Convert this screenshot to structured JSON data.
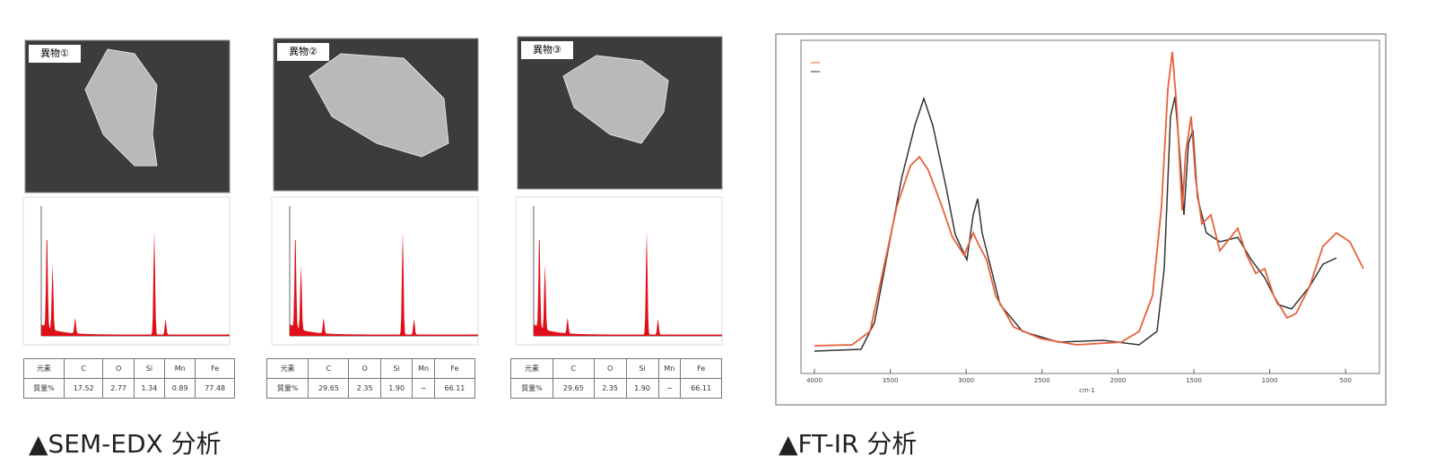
{
  "panels": [
    {
      "label": "異物①",
      "table": {
        "rows": [
          [
            "元素",
            "C",
            "O",
            "Si",
            "Mn",
            "Fe"
          ],
          [
            "質量%",
            "17.52",
            "2.77",
            "1.34",
            "0.89",
            "77.48"
          ]
        ]
      }
    },
    {
      "label": "異物②",
      "table": {
        "rows": [
          [
            "元素",
            "C",
            "O",
            "Si",
            "Mn",
            "Fe"
          ],
          [
            "質量%",
            "29.65",
            "2.35",
            "1.90",
            "−",
            "66.11"
          ]
        ]
      }
    },
    {
      "label": "異物③",
      "table": {
        "rows": [
          [
            "元素",
            "C",
            "O",
            "Si",
            "Mn",
            "Fe"
          ],
          [
            "質量%",
            "29.65",
            "2.35",
            "1.90",
            "−",
            "66.11"
          ]
        ]
      }
    }
  ],
  "sem_caption": "▲SEM-EDX 分析",
  "ftir": {
    "xticks": [
      "4000",
      "3500",
      "3000",
      "2500",
      "2000",
      "1500",
      "1000",
      "500"
    ],
    "x_axis_label": "cm-1"
  },
  "ftir_caption": "▲FT-IR 分析"
}
